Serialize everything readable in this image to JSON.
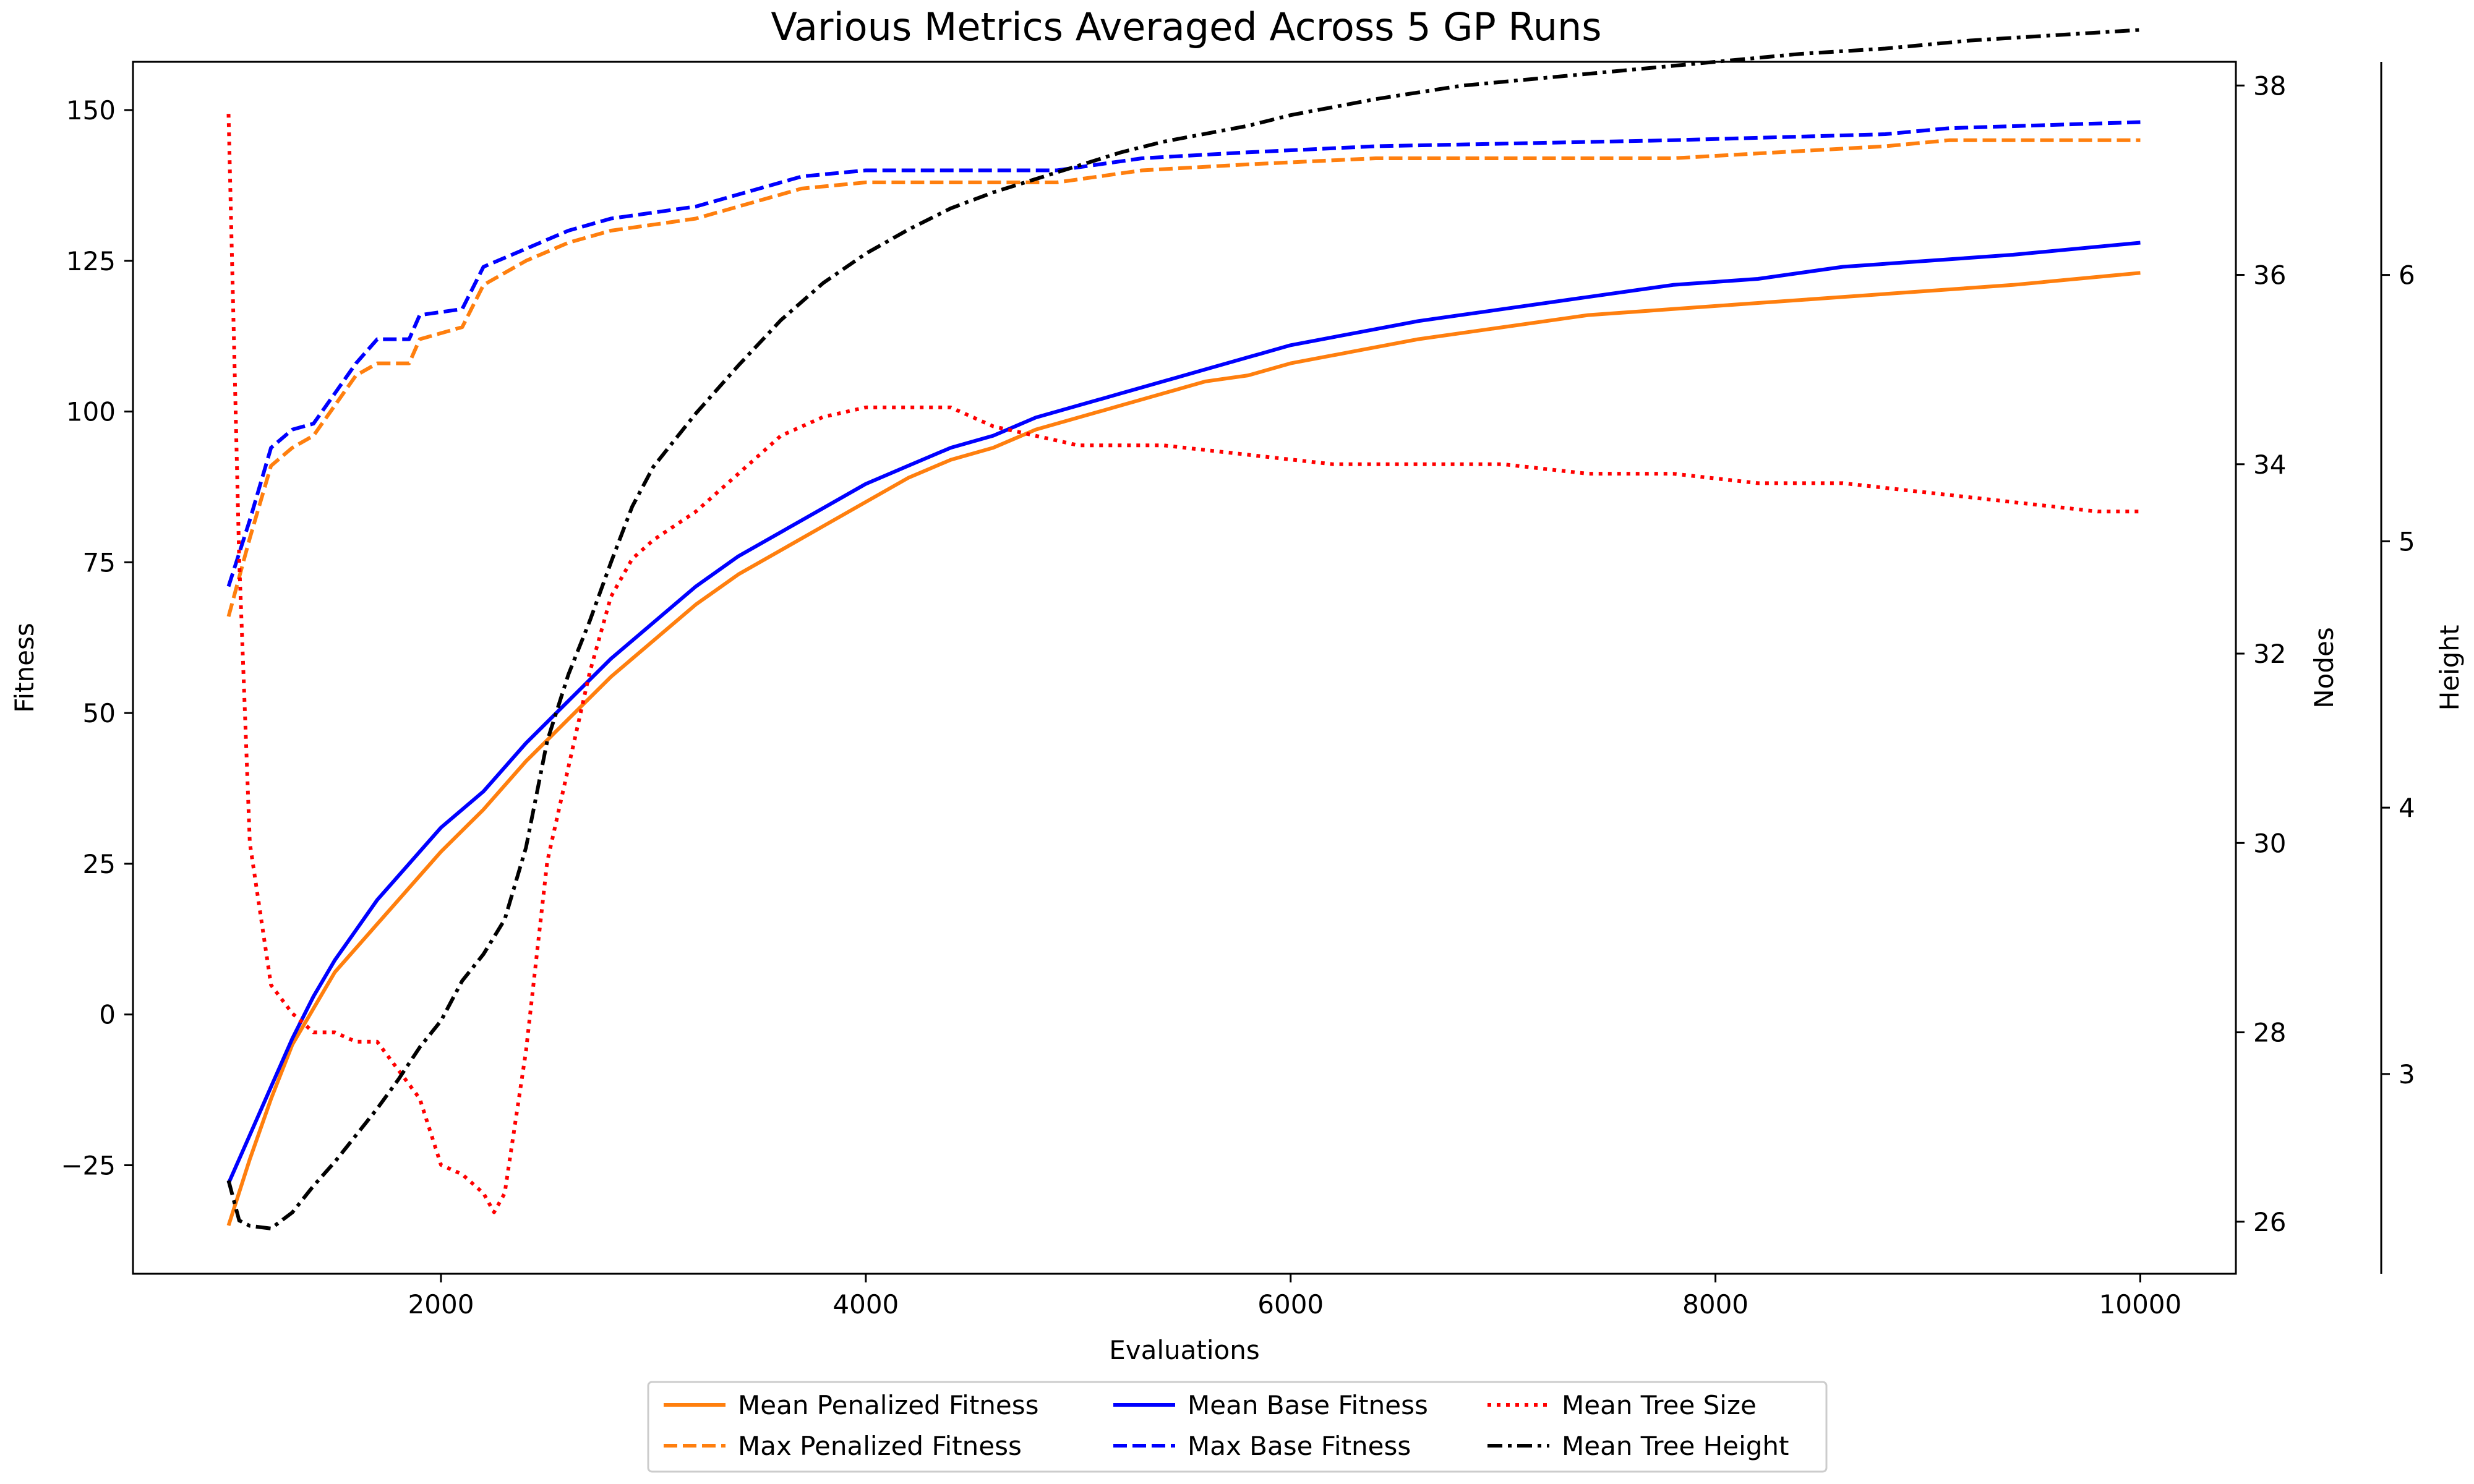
{
  "chart_data": {
    "type": "line",
    "title": "Various Metrics Averaged Across 5 GP Runs",
    "xlabel": "Evaluations",
    "xlim": [
      550,
      10450
    ],
    "xticks": [
      2000,
      4000,
      6000,
      8000,
      10000
    ],
    "axes": {
      "fitness": {
        "label": "Fitness",
        "lim": [
          -43,
          158
        ],
        "ticks": [
          -25,
          0,
          25,
          50,
          75,
          100,
          125,
          150
        ]
      },
      "nodes": {
        "label": "Nodes",
        "lim": [
          25.45,
          38.25
        ],
        "ticks": [
          26,
          28,
          30,
          32,
          34,
          36,
          38
        ]
      },
      "height": {
        "label": "Height",
        "lim": [
          2.25,
          6.8
        ],
        "ticks": [
          3,
          4,
          5,
          6
        ]
      }
    },
    "legend": {
      "placement": "bottom-center",
      "columns": 3
    },
    "series": [
      {
        "name": "Mean Penalized Fitness",
        "axis": "fitness",
        "color": "#ff7f0e",
        "dash": "solid",
        "x": [
          1000,
          1100,
          1200,
          1300,
          1400,
          1500,
          1600,
          1700,
          1800,
          1900,
          2000,
          2200,
          2400,
          2600,
          2800,
          3000,
          3200,
          3400,
          3600,
          3800,
          4000,
          4200,
          4400,
          4600,
          4800,
          5000,
          5200,
          5400,
          5600,
          5800,
          6000,
          6300,
          6600,
          7000,
          7400,
          7800,
          8200,
          8600,
          9000,
          9400,
          10000
        ],
        "y": [
          -35,
          -24,
          -14,
          -5,
          1,
          7,
          11,
          15,
          19,
          23,
          27,
          34,
          42,
          49,
          56,
          62,
          68,
          73,
          77,
          81,
          85,
          89,
          92,
          94,
          97,
          99,
          101,
          103,
          105,
          106,
          108,
          110,
          112,
          114,
          116,
          117,
          118,
          119,
          120,
          121,
          123
        ]
      },
      {
        "name": "Max Penalized Fitness",
        "axis": "fitness",
        "color": "#ff7f0e",
        "dash": "dashed",
        "x": [
          1000,
          1100,
          1200,
          1300,
          1400,
          1500,
          1600,
          1700,
          1850,
          1900,
          2100,
          2200,
          2400,
          2600,
          2800,
          3000,
          3200,
          3400,
          3500,
          3700,
          4000,
          4900,
          5300,
          5800,
          6400,
          7800,
          8800,
          9100,
          10000
        ],
        "y": [
          66,
          79,
          91,
          94,
          96,
          101,
          106,
          108,
          108,
          112,
          114,
          121,
          125,
          128,
          130,
          131,
          132,
          134,
          135,
          137,
          138,
          138,
          140,
          141,
          142,
          142,
          144,
          145,
          145
        ]
      },
      {
        "name": "Mean Base Fitness",
        "axis": "fitness",
        "color": "#0000ff",
        "dash": "solid",
        "x": [
          1000,
          1100,
          1200,
          1300,
          1400,
          1500,
          1600,
          1700,
          1800,
          1900,
          2000,
          2200,
          2400,
          2600,
          2800,
          3000,
          3200,
          3400,
          3600,
          3800,
          4000,
          4200,
          4400,
          4600,
          4800,
          5000,
          5200,
          5400,
          5600,
          5800,
          6000,
          6300,
          6600,
          7000,
          7400,
          7800,
          8200,
          8600,
          9000,
          9400,
          10000
        ],
        "y": [
          -28,
          -20,
          -12,
          -4,
          3,
          9,
          14,
          19,
          23,
          27,
          31,
          37,
          45,
          52,
          59,
          65,
          71,
          76,
          80,
          84,
          88,
          91,
          94,
          96,
          99,
          101,
          103,
          105,
          107,
          109,
          111,
          113,
          115,
          117,
          119,
          121,
          122,
          124,
          125,
          126,
          128
        ]
      },
      {
        "name": "Max Base Fitness",
        "axis": "fitness",
        "color": "#0000ff",
        "dash": "dashed",
        "x": [
          1000,
          1100,
          1200,
          1300,
          1400,
          1500,
          1600,
          1700,
          1850,
          1900,
          2100,
          2200,
          2400,
          2600,
          2800,
          3000,
          3200,
          3400,
          3500,
          3700,
          4000,
          4900,
          5300,
          5800,
          6400,
          7800,
          8800,
          9100,
          10000
        ],
        "y": [
          71,
          82,
          94,
          97,
          98,
          103,
          108,
          112,
          112,
          116,
          117,
          124,
          127,
          130,
          132,
          133,
          134,
          136,
          137,
          139,
          140,
          140,
          142,
          143,
          144,
          145,
          146,
          147,
          148
        ]
      },
      {
        "name": "Mean Tree Size",
        "axis": "nodes",
        "color": "#ff0000",
        "dash": "dotted",
        "x": [
          1000,
          1050,
          1100,
          1200,
          1300,
          1400,
          1500,
          1600,
          1700,
          1800,
          1900,
          2000,
          2100,
          2200,
          2250,
          2300,
          2400,
          2500,
          2600,
          2700,
          2800,
          2900,
          3000,
          3200,
          3400,
          3600,
          3800,
          4000,
          4200,
          4400,
          4600,
          4800,
          5000,
          5400,
          5800,
          6200,
          6600,
          7000,
          7400,
          7800,
          8200,
          8600,
          9000,
          9400,
          9800,
          10000
        ],
        "y": [
          37.7,
          33.0,
          30.0,
          28.5,
          28.2,
          28.0,
          28.0,
          27.9,
          27.9,
          27.6,
          27.3,
          26.6,
          26.5,
          26.3,
          26.1,
          26.3,
          27.8,
          29.8,
          30.8,
          31.8,
          32.6,
          33.0,
          33.2,
          33.5,
          33.9,
          34.3,
          34.5,
          34.6,
          34.6,
          34.6,
          34.4,
          34.3,
          34.2,
          34.2,
          34.1,
          34.0,
          34.0,
          34.0,
          33.9,
          33.9,
          33.8,
          33.8,
          33.7,
          33.6,
          33.5,
          33.5
        ]
      },
      {
        "name": "Mean Tree Height",
        "axis": "height",
        "color": "#000000",
        "dash": "dashdot",
        "x": [
          1000,
          1050,
          1100,
          1200,
          1300,
          1400,
          1500,
          1600,
          1700,
          1800,
          1900,
          2000,
          2100,
          2200,
          2300,
          2400,
          2500,
          2600,
          2700,
          2800,
          2900,
          3000,
          3200,
          3400,
          3600,
          3800,
          4000,
          4200,
          4400,
          4600,
          4800,
          5000,
          5200,
          5400,
          5600,
          5800,
          6000,
          6400,
          6800,
          7200,
          7600,
          8000,
          8400,
          8800,
          9200,
          9600,
          10000
        ],
        "y": [
          2.6,
          2.45,
          2.43,
          2.42,
          2.48,
          2.58,
          2.67,
          2.77,
          2.87,
          2.98,
          3.1,
          3.2,
          3.35,
          3.45,
          3.58,
          3.85,
          4.25,
          4.5,
          4.7,
          4.92,
          5.13,
          5.28,
          5.48,
          5.66,
          5.83,
          5.97,
          6.08,
          6.17,
          6.25,
          6.31,
          6.36,
          6.41,
          6.46,
          6.5,
          6.53,
          6.56,
          6.6,
          6.66,
          6.71,
          6.74,
          6.77,
          6.8,
          6.83,
          6.85,
          6.88,
          6.9,
          6.92
        ]
      }
    ]
  }
}
